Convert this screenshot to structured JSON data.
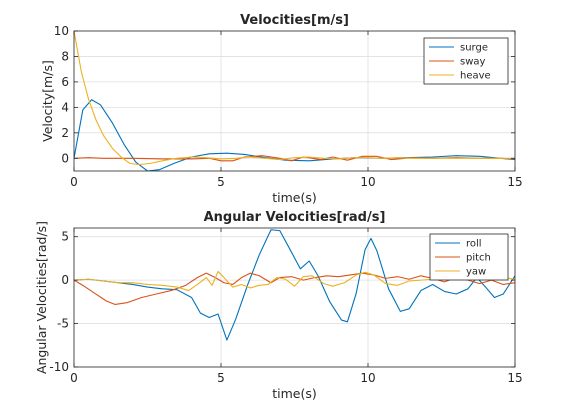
{
  "chart_data": [
    {
      "type": "line",
      "title": "Velocities[m/s]",
      "xlabel": "time(s)",
      "ylabel": "Velocity[m/s]",
      "xlim": [
        0,
        15
      ],
      "ylim": [
        -1,
        10
      ],
      "xticks": [
        0,
        5,
        10,
        15
      ],
      "yticks": [
        0,
        2,
        4,
        6,
        8,
        10
      ],
      "xtick_labels": [
        "0",
        "5",
        "10",
        "15"
      ],
      "ytick_labels": [
        "0",
        "2",
        "4",
        "6",
        "8",
        "10"
      ],
      "grid": true,
      "legend_position": "top-right",
      "series": [
        {
          "name": "surge",
          "color": "#0072BD",
          "points": [
            [
              0,
              0
            ],
            [
              0.3,
              3.8
            ],
            [
              0.6,
              4.6
            ],
            [
              0.9,
              4.2
            ],
            [
              1.3,
              2.8
            ],
            [
              1.7,
              1.1
            ],
            [
              2.1,
              -0.3
            ],
            [
              2.5,
              -1.0
            ],
            [
              2.9,
              -0.9
            ],
            [
              3.4,
              -0.4
            ],
            [
              4.0,
              0.1
            ],
            [
              4.6,
              0.35
            ],
            [
              5.2,
              0.4
            ],
            [
              5.8,
              0.3
            ],
            [
              6.5,
              0.05
            ],
            [
              7.2,
              -0.15
            ],
            [
              8.0,
              -0.2
            ],
            [
              8.8,
              -0.05
            ],
            [
              9.6,
              0.05
            ],
            [
              10.5,
              0.0
            ],
            [
              11.3,
              0.05
            ],
            [
              12.2,
              0.1
            ],
            [
              13.0,
              0.2
            ],
            [
              13.8,
              0.15
            ],
            [
              14.5,
              0.0
            ],
            [
              15,
              -0.1
            ]
          ]
        },
        {
          "name": "sway",
          "color": "#D95319",
          "points": [
            [
              0,
              0
            ],
            [
              0.5,
              0.05
            ],
            [
              1.0,
              0.0
            ],
            [
              2.0,
              0.0
            ],
            [
              3.0,
              -0.05
            ],
            [
              4.0,
              -0.05
            ],
            [
              4.6,
              0.0
            ],
            [
              5.0,
              -0.2
            ],
            [
              5.4,
              -0.2
            ],
            [
              5.8,
              0.1
            ],
            [
              6.4,
              0.2
            ],
            [
              7.0,
              0.0
            ],
            [
              7.4,
              -0.2
            ],
            [
              7.8,
              0.1
            ],
            [
              8.4,
              -0.1
            ],
            [
              8.8,
              0.1
            ],
            [
              9.3,
              -0.15
            ],
            [
              9.8,
              0.15
            ],
            [
              10.3,
              0.15
            ],
            [
              10.8,
              -0.1
            ],
            [
              11.5,
              0.05
            ],
            [
              12.2,
              0.0
            ],
            [
              13.0,
              0.05
            ],
            [
              13.8,
              0.0
            ],
            [
              14.5,
              0.0
            ],
            [
              15,
              -0.05
            ]
          ]
        },
        {
          "name": "heave",
          "color": "#EDB120",
          "points": [
            [
              0,
              10
            ],
            [
              0.25,
              6.8
            ],
            [
              0.5,
              4.6
            ],
            [
              0.75,
              3.0
            ],
            [
              1.0,
              1.8
            ],
            [
              1.3,
              0.8
            ],
            [
              1.6,
              0.1
            ],
            [
              1.9,
              -0.4
            ],
            [
              2.2,
              -0.5
            ],
            [
              2.6,
              -0.4
            ],
            [
              3.0,
              -0.2
            ],
            [
              3.5,
              0.0
            ],
            [
              4.0,
              0.1
            ],
            [
              4.5,
              0.05
            ],
            [
              5.0,
              -0.05
            ],
            [
              5.5,
              0.0
            ],
            [
              6.0,
              0.1
            ],
            [
              6.5,
              0.0
            ],
            [
              7.0,
              -0.1
            ],
            [
              7.5,
              0.05
            ],
            [
              8.0,
              0.1
            ],
            [
              8.5,
              0.0
            ],
            [
              9.0,
              -0.05
            ],
            [
              9.5,
              0.05
            ],
            [
              10.0,
              0.05
            ],
            [
              10.5,
              0.0
            ],
            [
              11.0,
              0.05
            ],
            [
              11.5,
              0.0
            ],
            [
              12.5,
              0.0
            ],
            [
              13.5,
              0.0
            ],
            [
              15,
              0.0
            ]
          ]
        }
      ]
    },
    {
      "type": "line",
      "title": "Angular Velocities[rad/s]",
      "xlabel": "time(s)",
      "ylabel": "Angular Velocities[rad/s]",
      "xlim": [
        0,
        15
      ],
      "ylim": [
        -10,
        6
      ],
      "xticks": [
        0,
        5,
        10,
        15
      ],
      "yticks": [
        -10,
        -5,
        0,
        5
      ],
      "xtick_labels": [
        "0",
        "5",
        "10",
        "15"
      ],
      "ytick_labels": [
        "-10",
        "-5",
        "0",
        "5"
      ],
      "grid": true,
      "legend_position": "top-right",
      "series": [
        {
          "name": "roll",
          "color": "#0072BD",
          "points": [
            [
              0,
              0
            ],
            [
              0.5,
              0.1
            ],
            [
              1.0,
              -0.1
            ],
            [
              1.5,
              -0.3
            ],
            [
              2.0,
              -0.5
            ],
            [
              2.5,
              -0.8
            ],
            [
              3.0,
              -1.0
            ],
            [
              3.5,
              -1.1
            ],
            [
              4.0,
              -2.0
            ],
            [
              4.3,
              -3.8
            ],
            [
              4.6,
              -4.3
            ],
            [
              4.9,
              -3.9
            ],
            [
              5.2,
              -6.9
            ],
            [
              5.5,
              -4.5
            ],
            [
              5.9,
              -0.6
            ],
            [
              6.3,
              2.9
            ],
            [
              6.7,
              5.8
            ],
            [
              7.0,
              5.7
            ],
            [
              7.4,
              3.2
            ],
            [
              7.7,
              1.3
            ],
            [
              8.0,
              2.2
            ],
            [
              8.3,
              0.5
            ],
            [
              8.7,
              -2.5
            ],
            [
              9.1,
              -4.6
            ],
            [
              9.3,
              -4.8
            ],
            [
              9.6,
              -1.5
            ],
            [
              9.9,
              3.5
            ],
            [
              10.1,
              4.8
            ],
            [
              10.3,
              3.4
            ],
            [
              10.7,
              -1.0
            ],
            [
              11.1,
              -3.6
            ],
            [
              11.4,
              -3.3
            ],
            [
              11.8,
              -1.2
            ],
            [
              12.2,
              -0.5
            ],
            [
              12.6,
              -1.3
            ],
            [
              13.0,
              -1.6
            ],
            [
              13.4,
              -1.0
            ],
            [
              13.7,
              0.3
            ],
            [
              14.0,
              -0.8
            ],
            [
              14.3,
              -2.0
            ],
            [
              14.6,
              -1.6
            ],
            [
              15,
              0.5
            ]
          ]
        },
        {
          "name": "pitch",
          "color": "#D95319",
          "points": [
            [
              0,
              0
            ],
            [
              0.3,
              -0.6
            ],
            [
              0.7,
              -1.5
            ],
            [
              1.1,
              -2.4
            ],
            [
              1.4,
              -2.8
            ],
            [
              1.8,
              -2.6
            ],
            [
              2.3,
              -2.0
            ],
            [
              2.8,
              -1.6
            ],
            [
              3.3,
              -1.2
            ],
            [
              3.8,
              -0.6
            ],
            [
              4.2,
              0.3
            ],
            [
              4.5,
              0.8
            ],
            [
              4.8,
              0.3
            ],
            [
              5.1,
              -0.3
            ],
            [
              5.4,
              -0.5
            ],
            [
              5.7,
              0.3
            ],
            [
              6.0,
              0.8
            ],
            [
              6.3,
              0.5
            ],
            [
              6.7,
              -0.3
            ],
            [
              7.0,
              0.3
            ],
            [
              7.4,
              0.4
            ],
            [
              7.8,
              0.0
            ],
            [
              8.2,
              0.3
            ],
            [
              8.6,
              0.5
            ],
            [
              9.0,
              0.4
            ],
            [
              9.4,
              0.6
            ],
            [
              9.8,
              0.8
            ],
            [
              10.2,
              0.6
            ],
            [
              10.6,
              0.2
            ],
            [
              11.0,
              0.4
            ],
            [
              11.4,
              0.1
            ],
            [
              11.8,
              0.5
            ],
            [
              12.2,
              0.2
            ],
            [
              12.6,
              -0.2
            ],
            [
              13.0,
              0.3
            ],
            [
              13.4,
              0.0
            ],
            [
              13.8,
              -0.4
            ],
            [
              14.2,
              0.0
            ],
            [
              14.6,
              -0.5
            ],
            [
              15,
              -0.3
            ]
          ]
        },
        {
          "name": "yaw",
          "color": "#EDB120",
          "points": [
            [
              0,
              0
            ],
            [
              0.5,
              0.1
            ],
            [
              1.0,
              -0.1
            ],
            [
              1.5,
              -0.3
            ],
            [
              2.0,
              -0.3
            ],
            [
              2.5,
              -0.5
            ],
            [
              3.0,
              -0.6
            ],
            [
              3.5,
              -0.8
            ],
            [
              3.9,
              -1.2
            ],
            [
              4.2,
              -0.5
            ],
            [
              4.5,
              0.3
            ],
            [
              4.7,
              -0.6
            ],
            [
              4.9,
              1.0
            ],
            [
              5.1,
              0.3
            ],
            [
              5.4,
              -0.8
            ],
            [
              5.7,
              -0.5
            ],
            [
              6.0,
              -0.9
            ],
            [
              6.3,
              -0.6
            ],
            [
              6.6,
              -0.5
            ],
            [
              6.9,
              0.3
            ],
            [
              7.2,
              0.1
            ],
            [
              7.5,
              -0.7
            ],
            [
              7.8,
              0.4
            ],
            [
              8.1,
              0.5
            ],
            [
              8.5,
              -0.4
            ],
            [
              8.8,
              -0.7
            ],
            [
              9.2,
              -0.3
            ],
            [
              9.6,
              0.6
            ],
            [
              9.9,
              0.9
            ],
            [
              10.2,
              0.6
            ],
            [
              10.6,
              -0.4
            ],
            [
              11.0,
              -0.6
            ],
            [
              11.4,
              -0.1
            ],
            [
              11.8,
              0.0
            ],
            [
              12.2,
              0.1
            ],
            [
              12.6,
              0.4
            ],
            [
              13.0,
              0.3
            ],
            [
              13.4,
              0.1
            ],
            [
              13.8,
              0.3
            ],
            [
              14.2,
              0.0
            ],
            [
              14.6,
              0.3
            ],
            [
              15,
              0.1
            ]
          ]
        }
      ]
    }
  ]
}
